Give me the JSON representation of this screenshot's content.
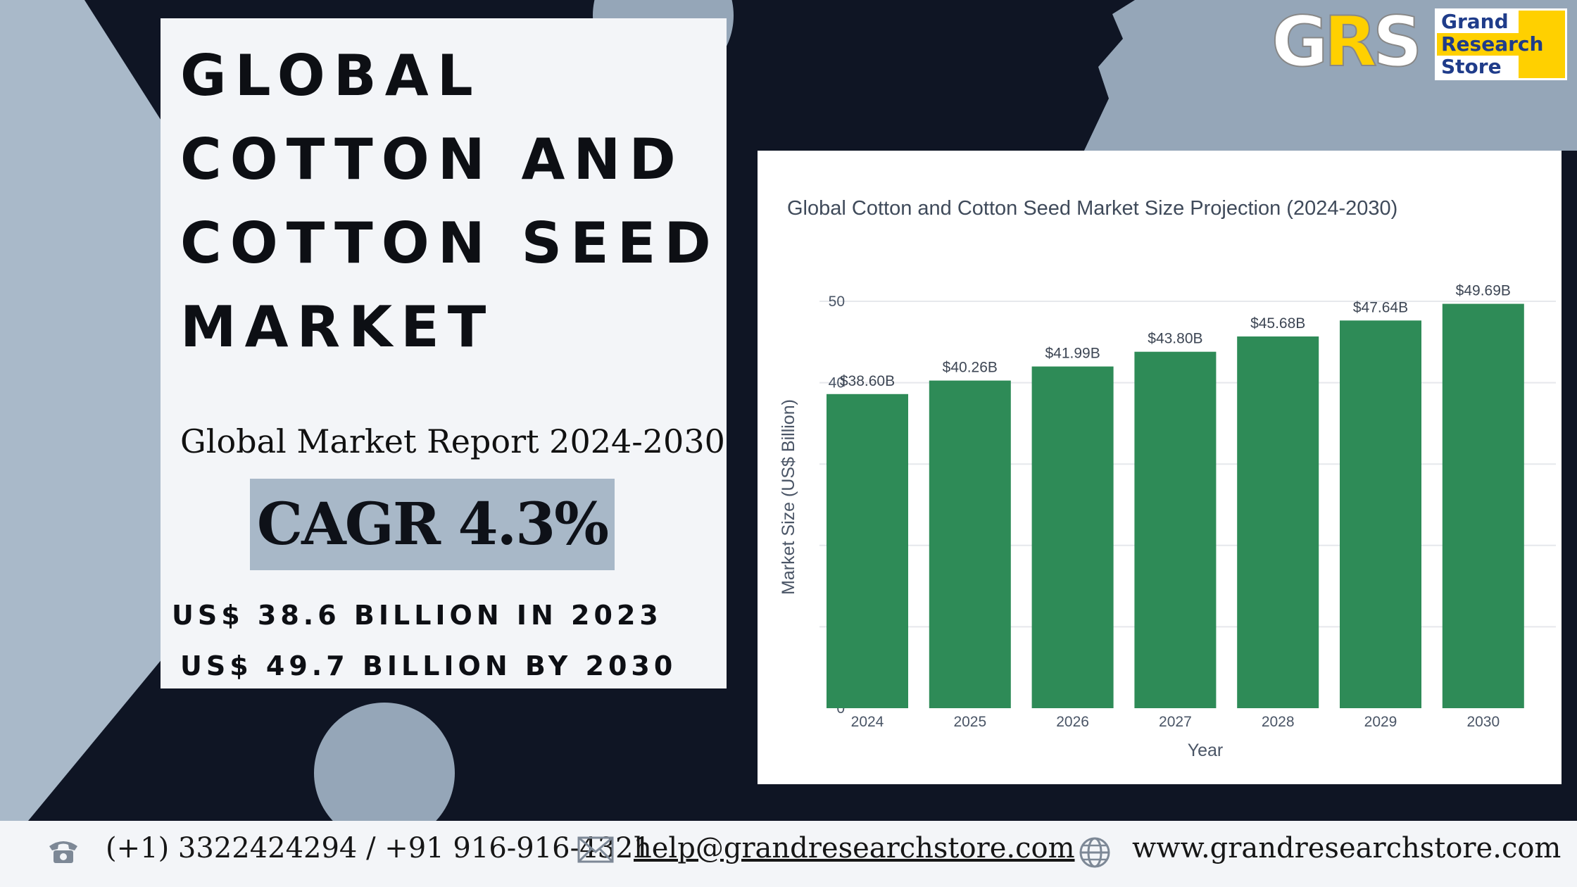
{
  "title_card": {
    "title": "GLOBAL COTTON AND COTTON SEED MARKET",
    "subtitle": "Global Market Report 2024-2030",
    "cagr": "CAGR 4.3%",
    "stat_2023": "US$ 38.6 BILLION IN 2023",
    "stat_2030": "US$ 49.7 BILLION BY 2030"
  },
  "logo": {
    "letters_a": "G",
    "letters_b": "R",
    "letters_c": "S",
    "word1": "Grand",
    "word2": "Research",
    "word3": "Store"
  },
  "chart_data": {
    "type": "bar",
    "title": "Global Cotton and Cotton Seed Market Size Projection (2024-2030)",
    "xlabel": "Year",
    "ylabel": "Market Size (US$ Billion)",
    "categories": [
      "2024",
      "2025",
      "2026",
      "2027",
      "2028",
      "2029",
      "2030"
    ],
    "values": [
      38.6,
      40.26,
      41.99,
      43.8,
      45.68,
      47.64,
      49.69
    ],
    "data_labels": [
      "$38.60B",
      "$40.26B",
      "$41.99B",
      "$43.80B",
      "$45.68B",
      "$47.64B",
      "$49.69B"
    ],
    "ylim": [
      0,
      50
    ],
    "yticks": [
      0,
      10,
      20,
      30,
      40,
      50
    ],
    "grid": true,
    "bar_color": "#2e8b57"
  },
  "footer": {
    "phone": "(+1) 3322424294 / +91 916-916-4321",
    "email": "help@grandresearchstore.com",
    "website": "www.grandresearchstore.com",
    "phone_icon": "telephone-icon",
    "mail_icon": "envelope-icon",
    "web_icon": "globe-icon"
  },
  "colors": {
    "background": "#0f1524",
    "accent_gray": "#a8b8c8",
    "card": "#f3f5f8",
    "logo_yellow": "#ffd000"
  }
}
